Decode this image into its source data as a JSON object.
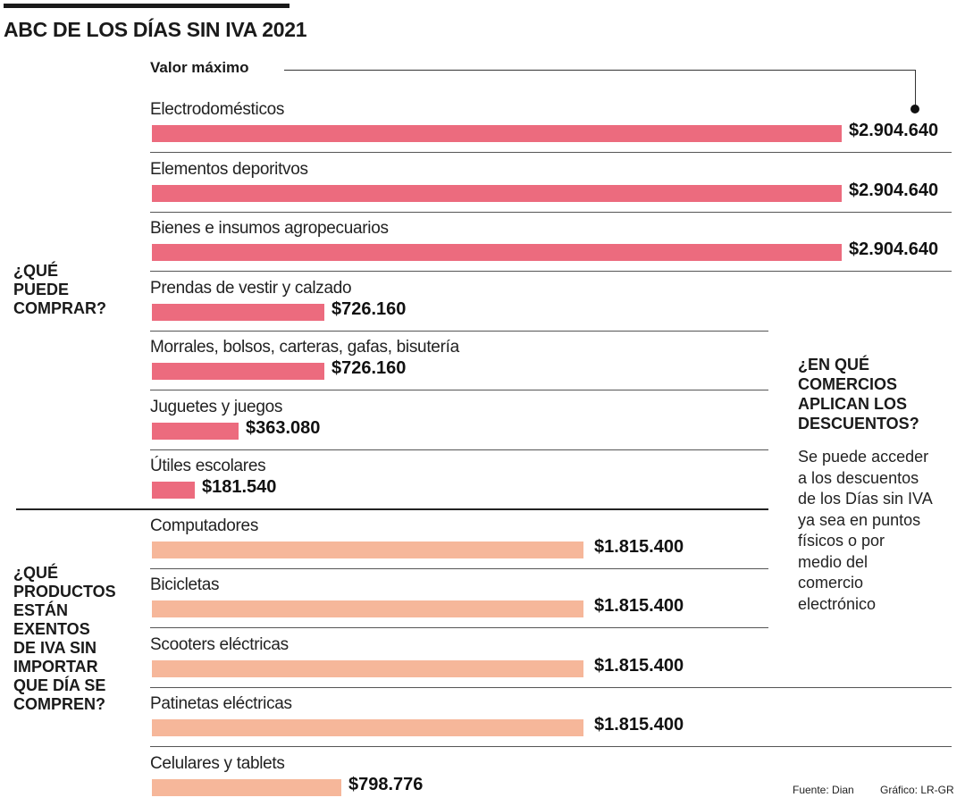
{
  "title": "ABC DE LOS DÍAS SIN IVA 2021",
  "value_header": "Valor máximo",
  "sections": [
    {
      "label_lines": [
        "¿QUÉ",
        "PUEDE",
        "COMPRAR?"
      ]
    },
    {
      "label_lines": [
        "¿QUÉ",
        "PRODUCTOS",
        "ESTÁN",
        "EXENTOS",
        "DE IVA SIN",
        "IMPORTAR",
        "QUE DÍA SE",
        "COMPREN?"
      ]
    }
  ],
  "side_panel": {
    "question_lines": [
      "¿EN QUÉ",
      "COMERCIOS",
      "APLICAN LOS",
      "DESCUENTOS?"
    ],
    "answer_lines": [
      "Se puede acceder",
      "a los descuentos",
      "de los Días sin IVA",
      "ya sea en puntos",
      "físicos o por",
      "medio del",
      "comercio",
      "electrónico"
    ]
  },
  "footer": {
    "source": "Fuente: Dian",
    "credit": "Gráfico: LR-GR"
  },
  "colors": {
    "section1_bar": "#EC6B7E",
    "section2_bar": "#F6B79A",
    "text": "#1a1a1a"
  },
  "chart_data": {
    "type": "bar",
    "orientation": "horizontal",
    "title": "ABC DE LOS DÍAS SIN IVA 2021",
    "xlabel": "Valor máximo",
    "ylabel": "",
    "currency": "COP",
    "xlim": [
      0,
      2904640
    ],
    "grid": false,
    "series": [
      {
        "name": "¿QUÉ PUEDE COMPRAR?",
        "color": "#EC6B7E",
        "categories": [
          "Electrodomésticos",
          "Elementos deporitvos",
          "Bienes e insumos agropecuarios",
          "Prendas de vestir y calzado",
          "Morrales, bolsos, carteras, gafas, bisutería",
          "Juguetes y juegos",
          "Útiles escolares"
        ],
        "values": [
          2904640,
          2904640,
          2904640,
          726160,
          726160,
          363080,
          181540
        ],
        "value_labels": [
          "$2.904.640",
          "$2.904.640",
          "$2.904.640",
          "$726.160",
          "$726.160",
          "$363.080",
          "$181.540"
        ]
      },
      {
        "name": "¿QUÉ PRODUCTOS ESTÁN EXENTOS DE IVA SIN IMPORTAR QUE DÍA SE COMPREN?",
        "color": "#F6B79A",
        "categories": [
          "Computadores",
          "Bicicletas",
          "Scooters eléctricas",
          "Patinetas eléctricas",
          "Celulares y tablets"
        ],
        "values": [
          1815400,
          1815400,
          1815400,
          1815400,
          798776
        ],
        "value_labels": [
          "$1.815.400",
          "$1.815.400",
          "$1.815.400",
          "$1.815.400",
          "$798.776"
        ]
      }
    ]
  }
}
